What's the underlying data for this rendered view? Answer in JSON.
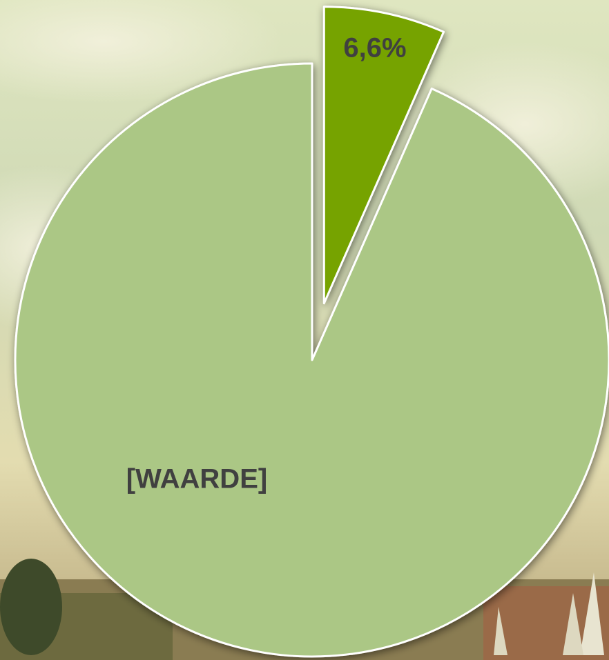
{
  "chart_data": {
    "type": "pie",
    "categories": [
      null,
      null
    ],
    "values": [
      6.6,
      93.4
    ],
    "value_labels": [
      "6,6%",
      "[WAARDE]"
    ],
    "colors": [
      "#76a300",
      "#abc785"
    ],
    "exploded": [
      true,
      false
    ]
  }
}
